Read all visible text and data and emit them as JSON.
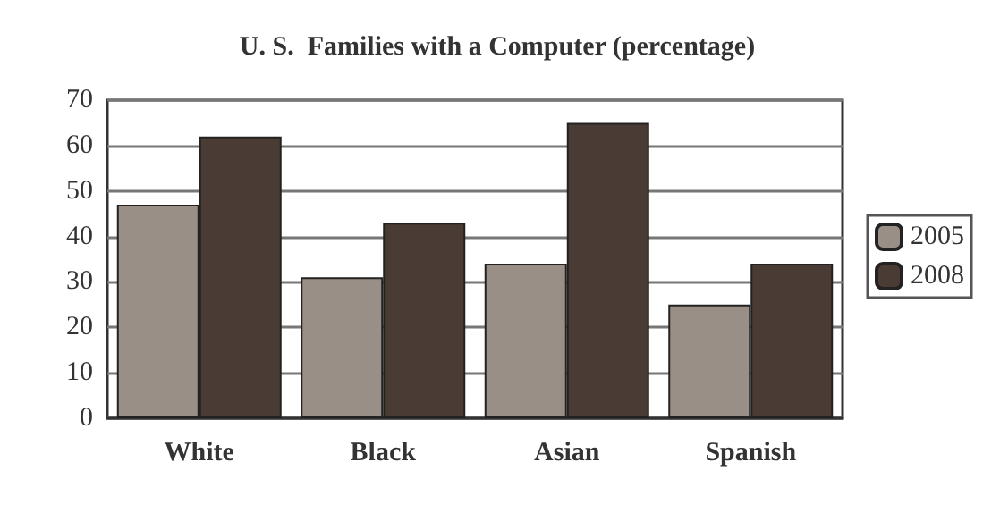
{
  "chart_data": {
    "type": "bar",
    "title": "U. S.  Families with a Computer (percentage)",
    "categories": [
      "White",
      "Black",
      "Asian",
      "Spanish"
    ],
    "series": [
      {
        "name": "2005",
        "color": "#9a8f86",
        "values": [
          47,
          31,
          34,
          25
        ]
      },
      {
        "name": "2008",
        "color": "#4a3c35",
        "values": [
          62,
          43,
          65,
          34
        ]
      }
    ],
    "ylim": [
      0,
      70
    ],
    "yticks": [
      0,
      10,
      20,
      30,
      40,
      50,
      60,
      70
    ],
    "grid": "y",
    "legend": "right"
  }
}
